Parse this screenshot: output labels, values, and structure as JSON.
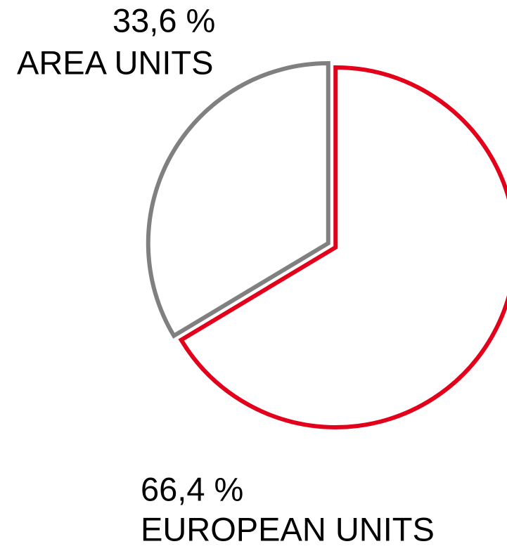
{
  "chart_data": {
    "type": "pie",
    "categories": [
      "EUROPEAN UNITS",
      "AREA UNITS"
    ],
    "values": [
      66.4,
      33.6
    ],
    "value_labels": [
      "66,4 %",
      "33,6 %"
    ],
    "colors": [
      "#e2001a",
      "#808080"
    ]
  }
}
